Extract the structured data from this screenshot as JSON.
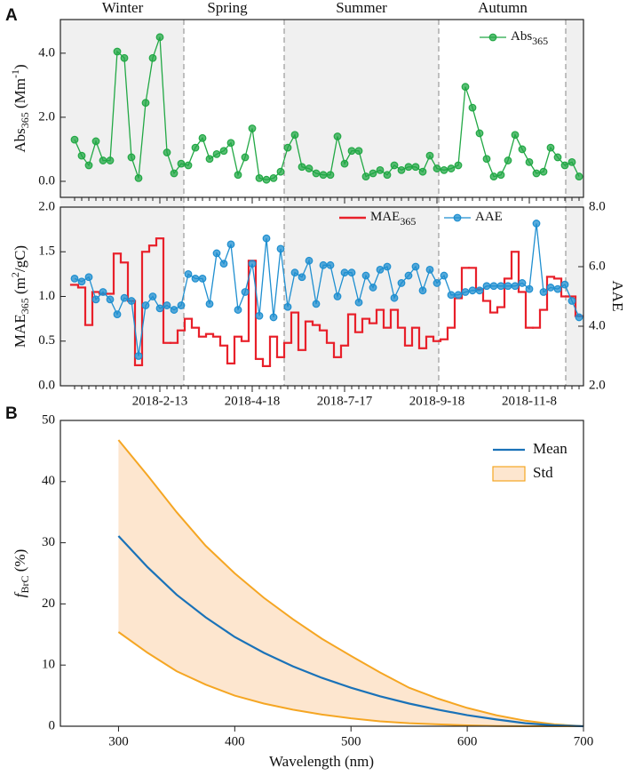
{
  "chart_data": [
    {
      "type": "line",
      "panel": "A",
      "annotations": [
        "Winter",
        "Spring",
        "Summer",
        "Autumn"
      ],
      "ylabel": [
        {
          "text": "Abs"
        },
        {
          "text": "365",
          "style": "sub"
        },
        {
          "text": " (Mm"
        },
        {
          "text": "-1",
          "style": "sup"
        },
        {
          "text": ")"
        }
      ],
      "ylim": [
        -0.5,
        5.05
      ],
      "yticks": [
        {
          "value": 0,
          "label": "0.0"
        },
        {
          "value": 2,
          "label": "2.0"
        },
        {
          "value": 4,
          "label": "4.0"
        }
      ],
      "legend": "upper right",
      "series": [
        {
          "name": [
            {
              "text": "Abs"
            },
            {
              "text": "365",
              "style": "sub"
            }
          ],
          "color": "#22a845",
          "marker": "circle",
          "values": [
            1.3,
            0.8,
            0.5,
            1.25,
            0.65,
            0.65,
            4.05,
            3.85,
            0.75,
            0.1,
            2.45,
            3.85,
            4.5,
            0.9,
            0.25,
            0.55,
            0.5,
            1.05,
            1.35,
            0.7,
            0.85,
            0.95,
            1.2,
            0.2,
            0.75,
            1.65,
            0.1,
            0.05,
            0.1,
            0.3,
            1.05,
            1.45,
            0.45,
            0.4,
            0.25,
            0.2,
            0.2,
            1.4,
            0.55,
            0.95,
            0.95,
            0.15,
            0.25,
            0.35,
            0.2,
            0.5,
            0.35,
            0.45,
            0.45,
            0.3,
            0.8,
            0.4,
            0.35,
            0.4,
            0.5,
            2.95,
            2.3,
            1.5,
            0.7,
            0.15,
            0.2,
            0.65,
            1.45,
            1.0,
            0.6,
            0.25,
            0.3,
            1.05,
            0.75,
            0.5,
            0.6,
            0.15
          ]
        }
      ]
    },
    {
      "type": "line",
      "categories": [
        null,
        null,
        null,
        null,
        null,
        null,
        null,
        null,
        null,
        null,
        null,
        null,
        "2018-2-13",
        null,
        null,
        null,
        null,
        null,
        null,
        null,
        null,
        null,
        null,
        null,
        null,
        "2018-4-18",
        null,
        null,
        null,
        null,
        null,
        null,
        null,
        null,
        null,
        null,
        null,
        null,
        "2018-7-17",
        null,
        null,
        null,
        null,
        null,
        null,
        null,
        null,
        null,
        null,
        null,
        null,
        "2018-9-18",
        null,
        null,
        null,
        null,
        null,
        null,
        null,
        null,
        null,
        null,
        null,
        null,
        "2018-11-8",
        null,
        null,
        null,
        null,
        null,
        null,
        null
      ],
      "ylabel": [
        {
          "text": "MAE"
        },
        {
          "text": "365",
          "style": "sub"
        },
        {
          "text": " (m"
        },
        {
          "text": "2",
          "style": "sup"
        },
        {
          "text": "/gC)"
        }
      ],
      "y2label": "AAE",
      "ylim": [
        0,
        2
      ],
      "yticks": [
        {
          "value": 0,
          "label": "0.0"
        },
        {
          "value": 0.5,
          "label": "0.5"
        },
        {
          "value": 1,
          "label": "1.0"
        },
        {
          "value": 1.5,
          "label": "1.5"
        },
        {
          "value": 2,
          "label": "2.0"
        }
      ],
      "y2lim": [
        2,
        8
      ],
      "y2ticks": [
        {
          "value": 2,
          "label": "2.0"
        },
        {
          "value": 4,
          "label": "4.0"
        },
        {
          "value": 6,
          "label": "6.0"
        },
        {
          "value": 8,
          "label": "8.0"
        }
      ],
      "series": [
        {
          "name": [
            {
              "text": "MAE"
            },
            {
              "text": "365",
              "style": "sub"
            }
          ],
          "color": "#e8202a",
          "drawstyle": "steps-mid",
          "values": [
            1.13,
            1.1,
            0.68,
            1.05,
            1.03,
            1.03,
            1.48,
            1.38,
            0.95,
            0.23,
            1.5,
            1.57,
            1.65,
            0.48,
            0.48,
            0.62,
            0.75,
            0.65,
            0.55,
            0.58,
            0.55,
            0.45,
            0.25,
            0.55,
            0.5,
            1.4,
            0.3,
            0.22,
            0.55,
            0.32,
            0.48,
            0.82,
            0.4,
            0.72,
            0.68,
            0.62,
            0.48,
            0.32,
            0.45,
            0.8,
            0.6,
            0.75,
            0.7,
            0.85,
            0.65,
            0.85,
            0.65,
            0.45,
            0.65,
            0.42,
            0.55,
            0.5,
            0.52,
            0.65,
            0.98,
            1.32,
            1.32,
            1.08,
            0.95,
            0.82,
            0.88,
            1.2,
            1.5,
            1.05,
            0.65,
            0.65,
            0.85,
            1.22,
            1.2,
            1.0,
            1.0,
            0.78
          ]
        },
        {
          "name": [
            {
              "text": "AAE"
            }
          ],
          "color": "#1f8fd0",
          "marker": "circle",
          "axis": "y2",
          "values": [
            5.6,
            5.5,
            5.65,
            4.9,
            5.15,
            4.9,
            4.4,
            4.95,
            4.85,
            3.0,
            4.7,
            5.0,
            4.6,
            4.7,
            4.55,
            4.7,
            5.75,
            5.6,
            5.6,
            4.75,
            6.45,
            6.1,
            6.75,
            4.55,
            5.15,
            6.1,
            4.35,
            6.95,
            4.3,
            6.6,
            4.65,
            5.8,
            5.65,
            6.2,
            4.75,
            6.05,
            6.05,
            5.0,
            5.8,
            5.8,
            4.8,
            5.7,
            5.3,
            5.9,
            6.0,
            4.95,
            5.45,
            5.7,
            6.0,
            5.2,
            5.9,
            5.45,
            5.7,
            5.05,
            5.05,
            5.15,
            5.2,
            5.2,
            5.35,
            5.35,
            5.35,
            5.35,
            5.35,
            5.45,
            5.25,
            7.45,
            5.15,
            5.3,
            5.25,
            5.4,
            4.85,
            4.3
          ]
        }
      ]
    },
    {
      "type": "line",
      "panel": "B",
      "xlabel": "Wavelength (nm)",
      "ylabel": [
        {
          "text": "f",
          "style": "italic"
        },
        {
          "text": "BrC",
          "style": "sub"
        },
        {
          "text": " (%)"
        }
      ],
      "x": [
        300,
        325,
        350,
        375,
        400,
        425,
        450,
        475,
        500,
        525,
        550,
        575,
        600,
        625,
        650,
        675,
        700
      ],
      "xlim": [
        250,
        700
      ],
      "xticks": [
        300,
        400,
        500,
        600,
        700
      ],
      "ylim": [
        0,
        50
      ],
      "yticks": [
        0,
        10,
        20,
        30,
        40,
        50
      ],
      "legend": "upper right",
      "series": [
        {
          "name": "Mean",
          "color": "#1a72b8",
          "values": [
            31.1,
            26,
            21.5,
            17.8,
            14.6,
            12.0,
            9.8,
            7.9,
            6.3,
            4.9,
            3.7,
            2.7,
            1.8,
            1.1,
            0.5,
            0.15,
            0
          ]
        },
        {
          "name": "Std",
          "type": "band",
          "color": "#f5a623",
          "fill": "#fde6cf",
          "upper": [
            46.8,
            41,
            35,
            29.5,
            25,
            21,
            17.5,
            14.3,
            11.5,
            8.8,
            6.3,
            4.5,
            3.0,
            1.8,
            0.9,
            0.3,
            0
          ],
          "lower": [
            15.4,
            12,
            9,
            6.8,
            5,
            3.7,
            2.7,
            1.9,
            1.3,
            0.8,
            0.5,
            0.3,
            0.15,
            0.05,
            0,
            0,
            0
          ]
        }
      ]
    }
  ]
}
